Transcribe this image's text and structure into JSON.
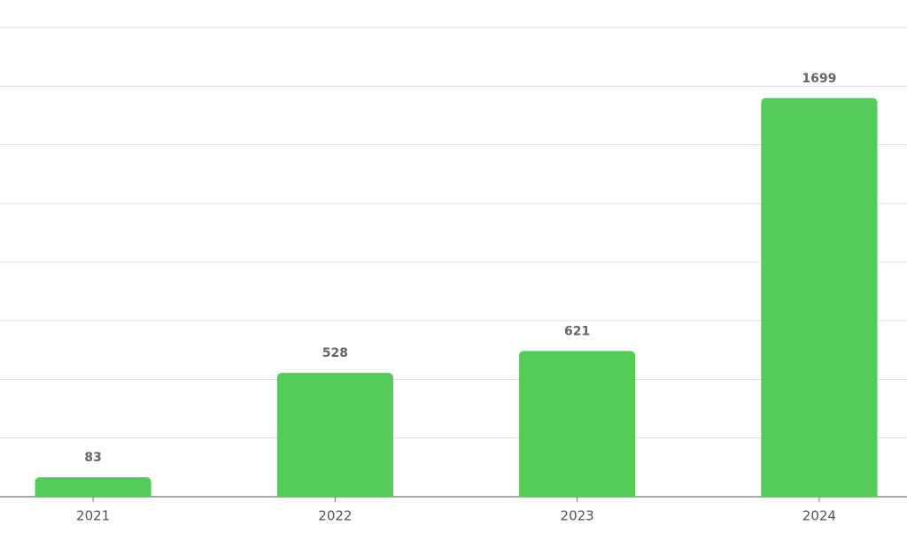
{
  "chart_data": {
    "type": "bar",
    "categories": [
      "2021",
      "2022",
      "2023",
      "2024"
    ],
    "values": [
      83,
      528,
      621,
      1699
    ],
    "color": "#55cc5a",
    "ylim": [
      0,
      2000
    ],
    "yticks": [
      0,
      250,
      500,
      750,
      1000,
      1250,
      1500,
      1750,
      2000
    ],
    "grid": true
  }
}
